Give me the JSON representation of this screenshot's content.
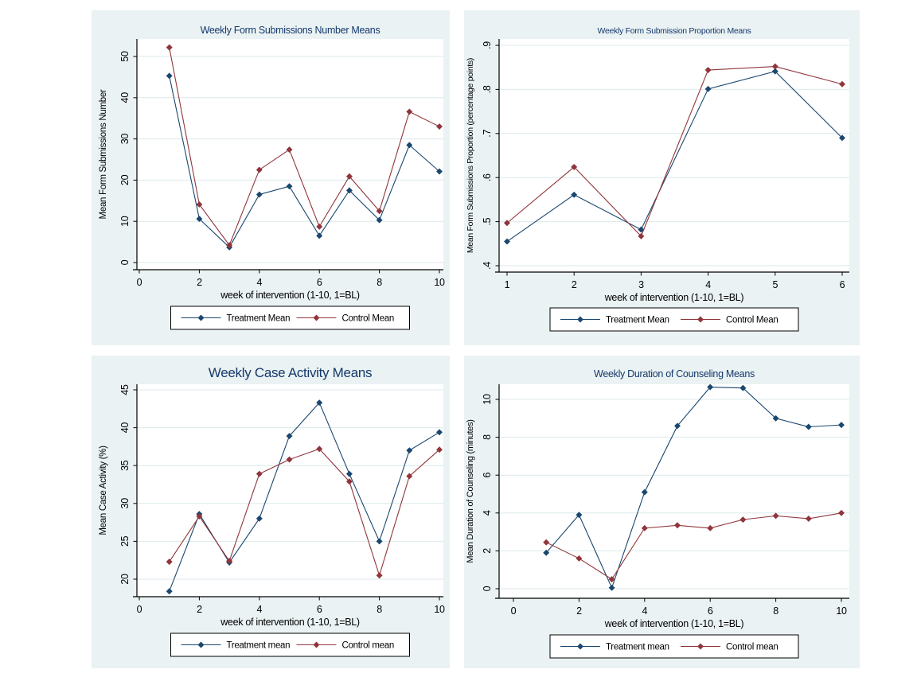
{
  "theme": {
    "canvas_background": "#ffffff",
    "panel_background": "#eaf2f3",
    "plot_background": "#ffffff",
    "grid_color": "#dce9ec",
    "axis_color": "#000000",
    "text_color": "#000000",
    "title_color": "#14386b",
    "navy": "#1a476f",
    "maroon": "#90353b"
  },
  "chart_data": [
    {
      "type": "line",
      "title": "Weekly Form Submissions Number Means",
      "xlabel": "week of intervention (1-10, 1=BL)",
      "ylabel": "Mean Form Submissions Number",
      "x": [
        1,
        2,
        3,
        4,
        5,
        6,
        7,
        8,
        9,
        10
      ],
      "xtick_values": [
        0,
        2,
        4,
        6,
        8,
        10
      ],
      "xtick_labels": [
        "0",
        "2",
        "4",
        "6",
        "8",
        "10"
      ],
      "ytick_values": [
        0,
        10,
        20,
        30,
        40,
        50
      ],
      "ytick_labels": [
        "0",
        "10",
        "20",
        "30",
        "40",
        "50"
      ],
      "xlim": [
        0,
        10.2
      ],
      "ylim": [
        -1.7,
        54.5
      ],
      "grid": "horizontal",
      "legend_position": "bottom",
      "series": [
        {
          "name": "Treatment Mean",
          "color_key": "navy",
          "values": [
            45.3,
            10.6,
            3.7,
            16.5,
            18.5,
            6.5,
            17.5,
            10.3,
            28.5,
            22.1
          ]
        },
        {
          "name": "Control Mean",
          "color_key": "maroon",
          "values": [
            52.2,
            14.1,
            4.2,
            22.5,
            27.4,
            8.7,
            20.9,
            12.5,
            36.6,
            33.0
          ]
        }
      ]
    },
    {
      "type": "line",
      "title": "Weekly Form Submission Proportion Means",
      "xlabel": "week of intervention (1-10, 1=BL)",
      "ylabel": "Mean Form Submissions Proportion (percentage points)",
      "x": [
        1,
        2,
        3,
        4,
        5,
        6
      ],
      "xtick_values": [
        1,
        2,
        3,
        4,
        5,
        6
      ],
      "xtick_labels": [
        "1",
        "2",
        "3",
        "4",
        "5",
        "6"
      ],
      "ytick_values": [
        0.4,
        0.5,
        0.6,
        0.7,
        0.8,
        0.9
      ],
      "ytick_labels": [
        ".4",
        ".5",
        ".6",
        ".7",
        ".8",
        ".9"
      ],
      "xlim": [
        1,
        6
      ],
      "ylim": [
        0.385,
        0.915
      ],
      "grid": "horizontal",
      "legend_position": "bottom",
      "series": [
        {
          "name": "Treatment Mean",
          "color_key": "navy",
          "values": [
            0.455,
            0.561,
            0.482,
            0.801,
            0.841,
            0.69
          ]
        },
        {
          "name": "Control Mean",
          "color_key": "maroon",
          "values": [
            0.497,
            0.624,
            0.467,
            0.844,
            0.852,
            0.812
          ]
        }
      ]
    },
    {
      "type": "line",
      "title": "Weekly Case Activity Means",
      "xlabel": "week of intervention (1-10, 1=BL)",
      "ylabel": "Mean Case Activity (%)",
      "x": [
        1,
        2,
        3,
        4,
        5,
        6,
        7,
        8,
        9,
        10
      ],
      "xtick_values": [
        0,
        2,
        4,
        6,
        8,
        10
      ],
      "xtick_labels": [
        "0",
        "2",
        "4",
        "6",
        "8",
        "10"
      ],
      "ytick_values": [
        20,
        25,
        30,
        35,
        40,
        45
      ],
      "ytick_labels": [
        "20",
        "25",
        "30",
        "35",
        "40",
        "45"
      ],
      "xlim": [
        0,
        10.2
      ],
      "ylim": [
        17.5,
        45.8
      ],
      "grid": "horizontal",
      "legend_position": "bottom",
      "series": [
        {
          "name": "Treatment mean",
          "color_key": "navy",
          "values": [
            18.4,
            28.6,
            22.2,
            28.0,
            38.9,
            43.3,
            33.9,
            25.0,
            37.0,
            39.4
          ]
        },
        {
          "name": "Control mean",
          "color_key": "maroon",
          "values": [
            22.3,
            28.3,
            22.4,
            33.9,
            35.8,
            37.2,
            32.9,
            20.5,
            33.6,
            37.1
          ]
        }
      ]
    },
    {
      "type": "line",
      "title": "Weekly Duration of Counseling Means",
      "xlabel": "week of intervention (1-10, 1=BL)",
      "ylabel": "Mean Duration of Counseling (minutes)",
      "x": [
        1,
        2,
        3,
        4,
        5,
        6,
        7,
        8,
        9,
        10
      ],
      "xtick_values": [
        0,
        2,
        4,
        6,
        8,
        10
      ],
      "xtick_labels": [
        "0",
        "2",
        "4",
        "6",
        "8",
        "10"
      ],
      "ytick_values": [
        0,
        2,
        4,
        6,
        8,
        10
      ],
      "ytick_labels": [
        "0",
        "2",
        "4",
        "6",
        "8",
        "10"
      ],
      "xlim": [
        0,
        10.2
      ],
      "ylim": [
        -0.5,
        10.9
      ],
      "grid": "horizontal",
      "legend_position": "bottom",
      "series": [
        {
          "name": "Treatment mean",
          "color_key": "navy",
          "values": [
            1.9,
            3.9,
            0.05,
            5.1,
            8.6,
            10.65,
            10.6,
            9.0,
            8.55,
            8.65
          ]
        },
        {
          "name": "Control mean",
          "color_key": "maroon",
          "values": [
            2.45,
            1.6,
            0.5,
            3.2,
            3.35,
            3.2,
            3.65,
            3.85,
            3.7,
            4.0
          ]
        }
      ]
    }
  ]
}
